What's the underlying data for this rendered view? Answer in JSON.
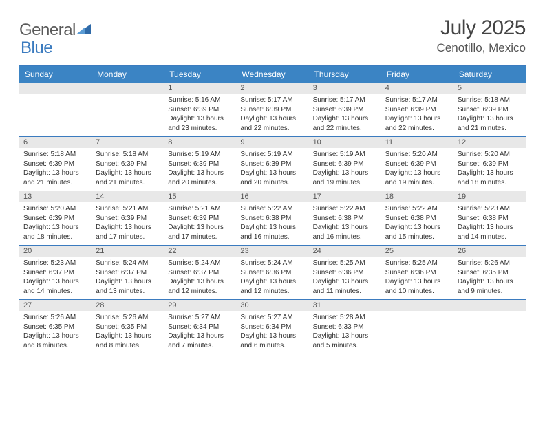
{
  "logo": {
    "text1": "General",
    "text2": "Blue"
  },
  "title": "July 2025",
  "location": "Cenotillo, Mexico",
  "colors": {
    "header_bg": "#3b84c4",
    "border": "#3b7bbf",
    "date_bg": "#e8e8e8",
    "logo_gray": "#5a5a5a",
    "logo_blue": "#3b7bbf"
  },
  "day_names": [
    "Sunday",
    "Monday",
    "Tuesday",
    "Wednesday",
    "Thursday",
    "Friday",
    "Saturday"
  ],
  "weeks": [
    [
      {
        "empty": true
      },
      {
        "empty": true
      },
      {
        "date": "1",
        "sunrise": "Sunrise: 5:16 AM",
        "sunset": "Sunset: 6:39 PM",
        "daylight": "Daylight: 13 hours and 23 minutes."
      },
      {
        "date": "2",
        "sunrise": "Sunrise: 5:17 AM",
        "sunset": "Sunset: 6:39 PM",
        "daylight": "Daylight: 13 hours and 22 minutes."
      },
      {
        "date": "3",
        "sunrise": "Sunrise: 5:17 AM",
        "sunset": "Sunset: 6:39 PM",
        "daylight": "Daylight: 13 hours and 22 minutes."
      },
      {
        "date": "4",
        "sunrise": "Sunrise: 5:17 AM",
        "sunset": "Sunset: 6:39 PM",
        "daylight": "Daylight: 13 hours and 22 minutes."
      },
      {
        "date": "5",
        "sunrise": "Sunrise: 5:18 AM",
        "sunset": "Sunset: 6:39 PM",
        "daylight": "Daylight: 13 hours and 21 minutes."
      }
    ],
    [
      {
        "date": "6",
        "sunrise": "Sunrise: 5:18 AM",
        "sunset": "Sunset: 6:39 PM",
        "daylight": "Daylight: 13 hours and 21 minutes."
      },
      {
        "date": "7",
        "sunrise": "Sunrise: 5:18 AM",
        "sunset": "Sunset: 6:39 PM",
        "daylight": "Daylight: 13 hours and 21 minutes."
      },
      {
        "date": "8",
        "sunrise": "Sunrise: 5:19 AM",
        "sunset": "Sunset: 6:39 PM",
        "daylight": "Daylight: 13 hours and 20 minutes."
      },
      {
        "date": "9",
        "sunrise": "Sunrise: 5:19 AM",
        "sunset": "Sunset: 6:39 PM",
        "daylight": "Daylight: 13 hours and 20 minutes."
      },
      {
        "date": "10",
        "sunrise": "Sunrise: 5:19 AM",
        "sunset": "Sunset: 6:39 PM",
        "daylight": "Daylight: 13 hours and 19 minutes."
      },
      {
        "date": "11",
        "sunrise": "Sunrise: 5:20 AM",
        "sunset": "Sunset: 6:39 PM",
        "daylight": "Daylight: 13 hours and 19 minutes."
      },
      {
        "date": "12",
        "sunrise": "Sunrise: 5:20 AM",
        "sunset": "Sunset: 6:39 PM",
        "daylight": "Daylight: 13 hours and 18 minutes."
      }
    ],
    [
      {
        "date": "13",
        "sunrise": "Sunrise: 5:20 AM",
        "sunset": "Sunset: 6:39 PM",
        "daylight": "Daylight: 13 hours and 18 minutes."
      },
      {
        "date": "14",
        "sunrise": "Sunrise: 5:21 AM",
        "sunset": "Sunset: 6:39 PM",
        "daylight": "Daylight: 13 hours and 17 minutes."
      },
      {
        "date": "15",
        "sunrise": "Sunrise: 5:21 AM",
        "sunset": "Sunset: 6:39 PM",
        "daylight": "Daylight: 13 hours and 17 minutes."
      },
      {
        "date": "16",
        "sunrise": "Sunrise: 5:22 AM",
        "sunset": "Sunset: 6:38 PM",
        "daylight": "Daylight: 13 hours and 16 minutes."
      },
      {
        "date": "17",
        "sunrise": "Sunrise: 5:22 AM",
        "sunset": "Sunset: 6:38 PM",
        "daylight": "Daylight: 13 hours and 16 minutes."
      },
      {
        "date": "18",
        "sunrise": "Sunrise: 5:22 AM",
        "sunset": "Sunset: 6:38 PM",
        "daylight": "Daylight: 13 hours and 15 minutes."
      },
      {
        "date": "19",
        "sunrise": "Sunrise: 5:23 AM",
        "sunset": "Sunset: 6:38 PM",
        "daylight": "Daylight: 13 hours and 14 minutes."
      }
    ],
    [
      {
        "date": "20",
        "sunrise": "Sunrise: 5:23 AM",
        "sunset": "Sunset: 6:37 PM",
        "daylight": "Daylight: 13 hours and 14 minutes."
      },
      {
        "date": "21",
        "sunrise": "Sunrise: 5:24 AM",
        "sunset": "Sunset: 6:37 PM",
        "daylight": "Daylight: 13 hours and 13 minutes."
      },
      {
        "date": "22",
        "sunrise": "Sunrise: 5:24 AM",
        "sunset": "Sunset: 6:37 PM",
        "daylight": "Daylight: 13 hours and 12 minutes."
      },
      {
        "date": "23",
        "sunrise": "Sunrise: 5:24 AM",
        "sunset": "Sunset: 6:36 PM",
        "daylight": "Daylight: 13 hours and 12 minutes."
      },
      {
        "date": "24",
        "sunrise": "Sunrise: 5:25 AM",
        "sunset": "Sunset: 6:36 PM",
        "daylight": "Daylight: 13 hours and 11 minutes."
      },
      {
        "date": "25",
        "sunrise": "Sunrise: 5:25 AM",
        "sunset": "Sunset: 6:36 PM",
        "daylight": "Daylight: 13 hours and 10 minutes."
      },
      {
        "date": "26",
        "sunrise": "Sunrise: 5:26 AM",
        "sunset": "Sunset: 6:35 PM",
        "daylight": "Daylight: 13 hours and 9 minutes."
      }
    ],
    [
      {
        "date": "27",
        "sunrise": "Sunrise: 5:26 AM",
        "sunset": "Sunset: 6:35 PM",
        "daylight": "Daylight: 13 hours and 8 minutes."
      },
      {
        "date": "28",
        "sunrise": "Sunrise: 5:26 AM",
        "sunset": "Sunset: 6:35 PM",
        "daylight": "Daylight: 13 hours and 8 minutes."
      },
      {
        "date": "29",
        "sunrise": "Sunrise: 5:27 AM",
        "sunset": "Sunset: 6:34 PM",
        "daylight": "Daylight: 13 hours and 7 minutes."
      },
      {
        "date": "30",
        "sunrise": "Sunrise: 5:27 AM",
        "sunset": "Sunset: 6:34 PM",
        "daylight": "Daylight: 13 hours and 6 minutes."
      },
      {
        "date": "31",
        "sunrise": "Sunrise: 5:28 AM",
        "sunset": "Sunset: 6:33 PM",
        "daylight": "Daylight: 13 hours and 5 minutes."
      },
      {
        "empty": true
      },
      {
        "empty": true
      }
    ]
  ]
}
